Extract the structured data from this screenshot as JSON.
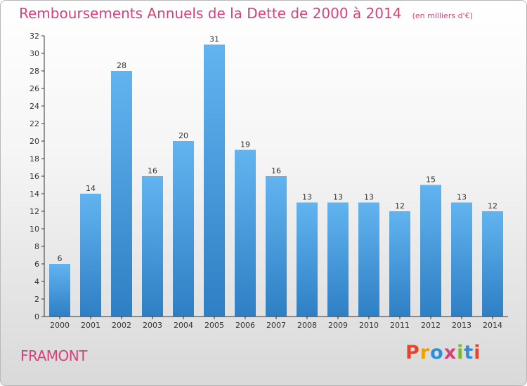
{
  "chart_data": {
    "type": "bar",
    "title": "Remboursements Annuels de la Dette de 2000 à 2014",
    "unit": "(en milliers d'€)",
    "categories": [
      "2000",
      "2001",
      "2002",
      "2003",
      "2004",
      "2005",
      "2006",
      "2007",
      "2008",
      "2009",
      "2010",
      "2011",
      "2012",
      "2013",
      "2014"
    ],
    "values": [
      6,
      14,
      28,
      16,
      20,
      31,
      19,
      16,
      13,
      13,
      13,
      12,
      15,
      13,
      12
    ],
    "ylim": [
      0,
      32
    ],
    "yticks": [
      0,
      2,
      4,
      6,
      8,
      10,
      12,
      14,
      16,
      18,
      20,
      22,
      24,
      26,
      28,
      30,
      32
    ],
    "grid": false,
    "bar_color": "#4a9fe0"
  },
  "footer": {
    "commune": "FRAMONT",
    "logo": "Proxiti",
    "logo_colors": [
      "#e2462b",
      "#f0a000",
      "#2e8ed8",
      "#d8407a",
      "#7cb82f",
      "#2e8ed8",
      "#e2462b"
    ]
  },
  "colors": {
    "title": "#d8407a",
    "axis": "#333333"
  }
}
